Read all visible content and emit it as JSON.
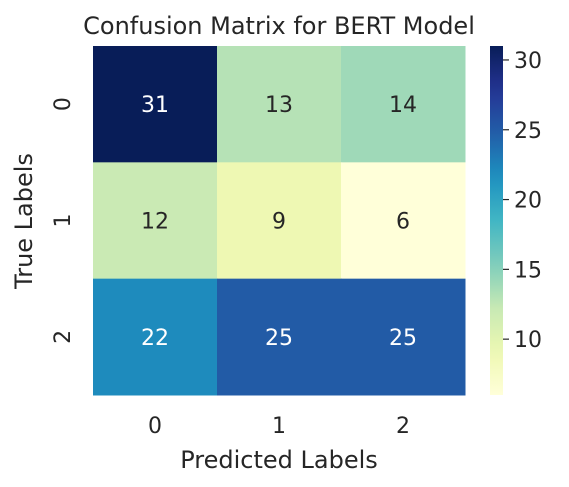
{
  "chart_data": {
    "type": "heatmap",
    "title": "Confusion Matrix for BERT Model",
    "xlabel": "Predicted Labels",
    "ylabel": "True Labels",
    "x_categories": [
      "0",
      "1",
      "2"
    ],
    "y_categories": [
      "0",
      "1",
      "2"
    ],
    "values": [
      [
        31,
        13,
        14
      ],
      [
        12,
        9,
        6
      ],
      [
        22,
        25,
        25
      ]
    ],
    "colormap": "YlGnBu",
    "colorbar": {
      "min": 6,
      "max": 31,
      "ticks": [
        10,
        15,
        20,
        25,
        30
      ]
    },
    "annotations": true
  }
}
